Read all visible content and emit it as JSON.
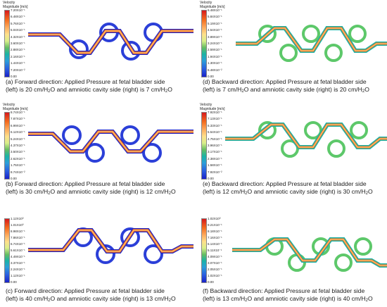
{
  "legend_title_line1": "Velocity",
  "legend_title_line2": "Magnitude [m/s]",
  "panels": [
    {
      "id": "a",
      "ticks": [
        "7.20X10⁻¹",
        "6.48X10⁻¹",
        "5.76X10⁻¹",
        "5.04X10⁻¹",
        "4.32X10⁻¹",
        "3.60X10⁻¹",
        "2.88X10⁻¹",
        "2.16X10⁻¹",
        "1.44X10⁻¹",
        "7.20X10⁻²",
        "0.00"
      ],
      "caption_line1": "(a) Forward direction: Applied Pressure at fetal bladder side",
      "caption_line2_pre": "(left) is 20 cm/H",
      "caption_line2_mid": "O and amniotic cavity side (right) is 7 cm/H",
      "caption_line2_end": "O"
    },
    {
      "id": "d",
      "ticks": [
        "6.48X10⁻¹",
        "5.84X10⁻¹",
        "5.19X10⁻¹",
        "4.54X10⁻¹",
        "3.89X10⁻¹",
        "3.24X10⁻¹",
        "2.59X10⁻¹",
        "1.94X10⁻¹",
        "1.30X10⁻¹",
        "6.48X10⁻²",
        "0.00"
      ],
      "caption_line1": "(d) Backward direction: Applied Pressure at fetal bladder side",
      "caption_line2_pre": "(left) is 7 cm/H",
      "caption_line2_mid": "O and amniotic cavity side (right) is 20 cm/H",
      "caption_line2_end": "O"
    },
    {
      "id": "b",
      "ticks": [
        "8.74X10⁻¹",
        "7.87X10⁻¹",
        "6.99X10⁻¹",
        "6.12X10⁻¹",
        "5.24X10⁻¹",
        "4.37X10⁻¹",
        "3.50X10⁻¹",
        "2.62X10⁻¹",
        "1.75X10⁻¹",
        "8.74X10⁻²",
        "0.00"
      ],
      "caption_line1": "(b) Forward direction: Applied Pressure at fetal bladder side",
      "caption_line2_pre": "(left) is 30 cm/H",
      "caption_line2_mid": "O and amniotic cavity side (right) is 12 cm/H",
      "caption_line2_end": "O"
    },
    {
      "id": "e",
      "ticks": [
        "7.92X10⁻¹",
        "7.13X10⁻¹",
        "6.33X10⁻¹",
        "5.54X10⁻¹",
        "4.75X10⁻¹",
        "3.96X10⁻¹",
        "3.17X10⁻¹",
        "2.38X10⁻¹",
        "1.58X10⁻¹",
        "7.92X10⁻²",
        "0.00"
      ],
      "caption_line1": "(e) Backward direction: Applied Pressure at fetal bladder side",
      "caption_line2_pre": "(left) is 12 cm/H",
      "caption_line2_mid": "O and amniotic cavity side (right) is 30 cm/H",
      "caption_line2_end": "O"
    },
    {
      "id": "c",
      "ticks": [
        "1.12X10⁰",
        "1.01X10⁰",
        "8.98X10⁻¹",
        "7.86X10⁻¹",
        "6.74X10⁻¹",
        "5.61X10⁻¹",
        "4.49X10⁻¹",
        "3.37X10⁻¹",
        "2.24X10⁻¹",
        "1.12X10⁻¹",
        "0.00"
      ],
      "caption_line1": "(c) Forward direction: Applied Pressure at fetal bladder side",
      "caption_line2_pre": "(left) is 40 cm/H",
      "caption_line2_mid": "O and amniotic cavity side (right) is 13 cm/H",
      "caption_line2_end": "O"
    },
    {
      "id": "f",
      "ticks": [
        "1.02X10⁰",
        "9.21X10⁻¹",
        "8.18X10⁻¹",
        "7.16X10⁻¹",
        "6.14X10⁻¹",
        "5.11X10⁻¹",
        "4.09X10⁻¹",
        "3.07X10⁻¹",
        "2.05X10⁻¹",
        "1.02X10⁻¹",
        "0.00"
      ],
      "caption_line1": "(f) Backward direction: Applied Pressure at fetal bladder side",
      "caption_line2_pre": "(left) is 13 cm/H",
      "caption_line2_mid": "O and amniotic cavity side (right) is 40 cm/H",
      "caption_line2_end": "O"
    }
  ],
  "subscript_2": "2",
  "colors": {
    "high": "#d7191c",
    "mid": "#66bd63",
    "low": "#1a22c8",
    "loop_forward": "#2b3fd8",
    "loop_backward": "#5dc86a"
  }
}
